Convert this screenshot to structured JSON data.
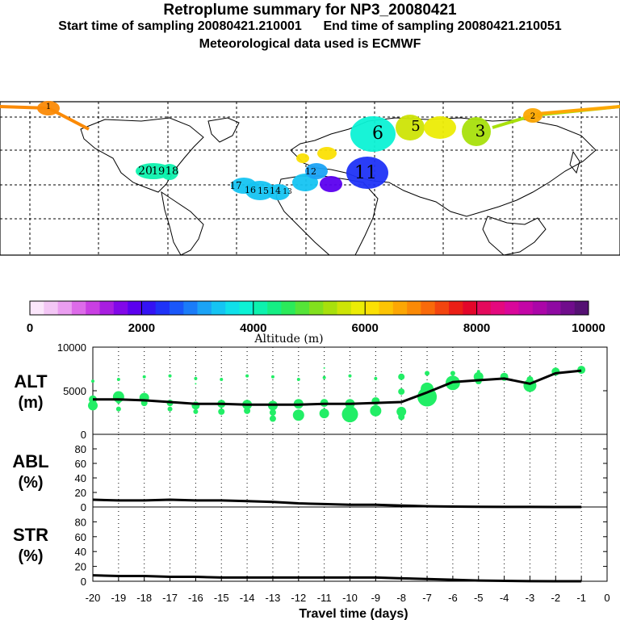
{
  "header": {
    "title": "Retroplume summary for NP3_20080421",
    "sampling_line": "Start time of sampling 20080421.210001      End time of sampling 20080421.210051",
    "met_line": "Meteorological data used is ECMWF"
  },
  "colors": {
    "colorbar": [
      "#fbe6fb",
      "#f3c6f5",
      "#ea9ef0",
      "#dd6be9",
      "#c93fe3",
      "#a81ee0",
      "#8208e8",
      "#5b00ef",
      "#3413f4",
      "#1f33f7",
      "#1a57f9",
      "#1b7cf8",
      "#1ba3f6",
      "#15c4f2",
      "#10e0ea",
      "#0cf2d5",
      "#0df2ae",
      "#15ee84",
      "#2bea5a",
      "#55e438",
      "#82e01e",
      "#a8e00c",
      "#cde406",
      "#ecec05",
      "#fbe004",
      "#fcc404",
      "#fca704",
      "#fb8a06",
      "#f96a0a",
      "#f3450f",
      "#eb1f16",
      "#e3062a",
      "#e40a5c",
      "#e4097e",
      "#d9079a",
      "#c306a6",
      "#ab06a8",
      "#8f0aa2",
      "#700d8c",
      "#551173"
    ],
    "alt_marker": "#22ee66",
    "line": "#000000"
  },
  "colorbar": {
    "tick_labels": [
      "0",
      "2000",
      "4000",
      "6000",
      "8000",
      "10000"
    ],
    "label": "Altitude (m)"
  },
  "map": {
    "labels": [
      {
        "text": "1",
        "color": "#fb8a06"
      },
      {
        "text": "20",
        "color": "#0cf2d5"
      },
      {
        "text": "19",
        "color": "#0cf2d5"
      },
      {
        "text": "18",
        "color": "#0cf2d5"
      },
      {
        "text": "17",
        "color": "#15c4f2"
      },
      {
        "text": "16",
        "color": "#15c4f2"
      },
      {
        "text": "15",
        "color": "#15c4f2"
      },
      {
        "text": "14",
        "color": "#15c4f2"
      },
      {
        "text": "13",
        "color": "#15c4f2"
      },
      {
        "text": "12",
        "color": "#1ba3f6"
      },
      {
        "text": "11",
        "color": "#1f33f7"
      },
      {
        "text": "6",
        "color": "#10e0ea"
      },
      {
        "text": "5",
        "color": "#cde406"
      },
      {
        "text": "3",
        "color": "#a8e00c"
      },
      {
        "text": "2",
        "color": "#fb8a06"
      }
    ]
  },
  "chart_data": [
    {
      "type": "scatter+line",
      "panel": "ALT",
      "ylabel": "ALT",
      "yunit": "(m)",
      "ylim": [
        0,
        10000
      ],
      "yticks": [
        0,
        5000,
        10000
      ],
      "x": [
        -20,
        -19,
        -18,
        -17,
        -16,
        -15,
        -14,
        -13,
        -12,
        -11,
        -10,
        -9,
        -8,
        -7,
        -6,
        -5,
        -4,
        -3,
        -2,
        -1
      ],
      "mean_altitude": [
        4000,
        4000,
        3900,
        3700,
        3500,
        3500,
        3400,
        3400,
        3400,
        3500,
        3500,
        3600,
        3700,
        4800,
        6000,
        6200,
        6400,
        5800,
        7000,
        7300
      ],
      "dots": [
        {
          "x": -20,
          "y": 6100,
          "s": 2
        },
        {
          "x": -20,
          "y": 4000,
          "s": 5
        },
        {
          "x": -20,
          "y": 3300,
          "s": 6
        },
        {
          "x": -19,
          "y": 6300,
          "s": 2
        },
        {
          "x": -19,
          "y": 4300,
          "s": 7
        },
        {
          "x": -19,
          "y": 3800,
          "s": 3
        },
        {
          "x": -19,
          "y": 2900,
          "s": 3
        },
        {
          "x": -18,
          "y": 6600,
          "s": 2
        },
        {
          "x": -18,
          "y": 4200,
          "s": 6
        },
        {
          "x": -18,
          "y": 3600,
          "s": 4
        },
        {
          "x": -17,
          "y": 6700,
          "s": 2
        },
        {
          "x": -17,
          "y": 3600,
          "s": 4
        },
        {
          "x": -17,
          "y": 2900,
          "s": 3
        },
        {
          "x": -16,
          "y": 6400,
          "s": 2
        },
        {
          "x": -16,
          "y": 5800,
          "s": 1
        },
        {
          "x": -16,
          "y": 3300,
          "s": 5
        },
        {
          "x": -16,
          "y": 2600,
          "s": 3
        },
        {
          "x": -15,
          "y": 6300,
          "s": 2
        },
        {
          "x": -15,
          "y": 3500,
          "s": 5
        },
        {
          "x": -15,
          "y": 2600,
          "s": 4
        },
        {
          "x": -14,
          "y": 6700,
          "s": 2
        },
        {
          "x": -14,
          "y": 3400,
          "s": 6
        },
        {
          "x": -14,
          "y": 2700,
          "s": 4
        },
        {
          "x": -13,
          "y": 6600,
          "s": 2
        },
        {
          "x": -13,
          "y": 3300,
          "s": 6
        },
        {
          "x": -13,
          "y": 2500,
          "s": 4
        },
        {
          "x": -13,
          "y": 1800,
          "s": 4
        },
        {
          "x": -12,
          "y": 6300,
          "s": 2
        },
        {
          "x": -12,
          "y": 3500,
          "s": 6
        },
        {
          "x": -12,
          "y": 2200,
          "s": 7
        },
        {
          "x": -11,
          "y": 7600,
          "s": 1
        },
        {
          "x": -11,
          "y": 6500,
          "s": 2
        },
        {
          "x": -11,
          "y": 3600,
          "s": 5
        },
        {
          "x": -11,
          "y": 2400,
          "s": 6
        },
        {
          "x": -10,
          "y": 6700,
          "s": 2
        },
        {
          "x": -10,
          "y": 3500,
          "s": 6
        },
        {
          "x": -10,
          "y": 2300,
          "s": 10
        },
        {
          "x": -9,
          "y": 6400,
          "s": 2
        },
        {
          "x": -9,
          "y": 3800,
          "s": 5
        },
        {
          "x": -9,
          "y": 2700,
          "s": 7
        },
        {
          "x": -8,
          "y": 6600,
          "s": 4
        },
        {
          "x": -8,
          "y": 4900,
          "s": 4
        },
        {
          "x": -8,
          "y": 2600,
          "s": 6
        },
        {
          "x": -8,
          "y": 2000,
          "s": 4
        },
        {
          "x": -7,
          "y": 7000,
          "s": 3
        },
        {
          "x": -7,
          "y": 5200,
          "s": 8
        },
        {
          "x": -7,
          "y": 4300,
          "s": 12
        },
        {
          "x": -6,
          "y": 7000,
          "s": 3
        },
        {
          "x": -6,
          "y": 5900,
          "s": 9
        },
        {
          "x": -5,
          "y": 7200,
          "s": 2
        },
        {
          "x": -5,
          "y": 6600,
          "s": 6
        },
        {
          "x": -5,
          "y": 6100,
          "s": 4
        },
        {
          "x": -4,
          "y": 6600,
          "s": 5
        },
        {
          "x": -3,
          "y": 6300,
          "s": 4
        },
        {
          "x": -3,
          "y": 5600,
          "s": 8
        },
        {
          "x": -2,
          "y": 7200,
          "s": 5
        },
        {
          "x": -1,
          "y": 7400,
          "s": 5
        }
      ]
    },
    {
      "type": "line",
      "panel": "ABL",
      "ylabel": "ABL",
      "yunit": "(%)",
      "ylim": [
        0,
        100
      ],
      "yticks": [
        0,
        20,
        40,
        60,
        80
      ],
      "x": [
        -20,
        -19,
        -18,
        -17,
        -16,
        -15,
        -14,
        -13,
        -12,
        -11,
        -10,
        -9,
        -8,
        -7,
        -6,
        -5,
        -4,
        -3,
        -2,
        -1
      ],
      "values": [
        10,
        9,
        9,
        10,
        9,
        9,
        8,
        7,
        5,
        4,
        3,
        3,
        2,
        1,
        0.5,
        0.3,
        0.2,
        0.1,
        0,
        0
      ]
    },
    {
      "type": "line",
      "panel": "STR",
      "ylabel": "STR",
      "yunit": "(%)",
      "ylim": [
        0,
        100
      ],
      "yticks": [
        0,
        20,
        40,
        60,
        80
      ],
      "x": [
        -20,
        -19,
        -18,
        -17,
        -16,
        -15,
        -14,
        -13,
        -12,
        -11,
        -10,
        -9,
        -8,
        -7,
        -6,
        -5,
        -4,
        -3,
        -2,
        -1
      ],
      "values": [
        8,
        7,
        7,
        6,
        6,
        5,
        5,
        5,
        5,
        5,
        5,
        5,
        4,
        3,
        2,
        1,
        0.5,
        0.2,
        0,
        0
      ]
    },
    {
      "axis": "shared-x",
      "xlabel": "Travel time (days)",
      "xlim": [
        -20,
        0
      ],
      "xtick_labels": [
        "-20",
        "-19",
        "-18",
        "-17",
        "-16",
        "-15",
        "-14",
        "-13",
        "-12",
        "-11",
        "-10",
        "-9",
        "-8",
        "-7",
        "-6",
        "-5",
        "-4",
        "-3",
        "-2",
        "-1",
        "0"
      ]
    }
  ]
}
